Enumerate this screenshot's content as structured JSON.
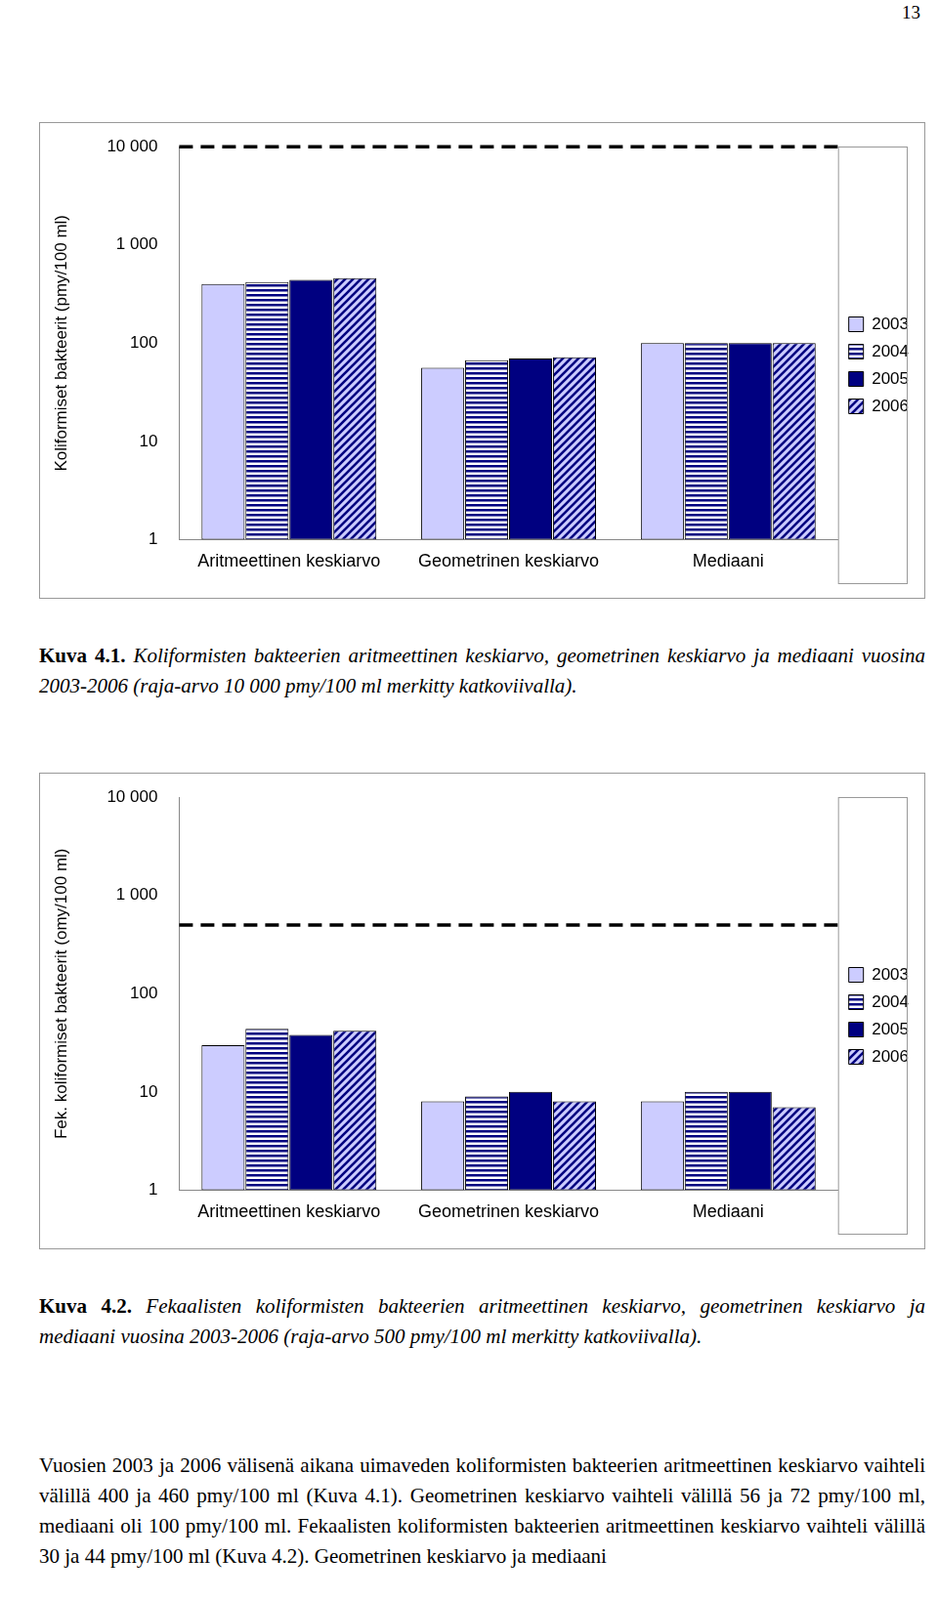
{
  "page_number": "13",
  "chart_data": [
    {
      "type": "bar",
      "y_label": "Koliformiset bakteerit (pmy/100 ml)",
      "categories": [
        "Aritmeettinen keskiarvo",
        "Geometrinen keskiarvo",
        "Mediaani"
      ],
      "series": [
        {
          "name": "2003",
          "color": "#ccccff",
          "values": [
            400,
            56,
            100
          ]
        },
        {
          "name": "2004",
          "color": "#000080",
          "values": [
            420,
            67,
            100
          ]
        },
        {
          "name": "2005",
          "color": "#000080",
          "values": [
            440,
            70,
            100
          ]
        },
        {
          "name": "2006",
          "color": "#000080",
          "values": [
            460,
            72,
            100
          ]
        }
      ],
      "log": "y",
      "ylim": [
        1,
        10000
      ],
      "yticks": [
        1,
        10,
        100,
        {
          "value": 1000,
          "label": "1 000"
        },
        {
          "value": 10000,
          "label": "10 000"
        }
      ],
      "grid": false,
      "legend": "right",
      "threshold": 10000
    },
    {
      "type": "bar",
      "y_label": "Fek. koliformiset bakteerit (omy/100 ml)",
      "categories": [
        "Aritmeettinen keskiarvo",
        "Geometrinen keskiarvo",
        "Mediaani"
      ],
      "series": [
        {
          "name": "2003",
          "color": "#ccccff",
          "values": [
            30,
            8,
            8
          ]
        },
        {
          "name": "2004",
          "color": "#000080",
          "values": [
            44,
            9,
            10
          ]
        },
        {
          "name": "2005",
          "color": "#000080",
          "values": [
            38,
            10,
            10
          ]
        },
        {
          "name": "2006",
          "color": "#000080",
          "values": [
            42,
            8,
            7
          ]
        }
      ],
      "log": "y",
      "ylim": [
        1,
        10000
      ],
      "yticks": [
        1,
        10,
        100,
        {
          "value": 1000,
          "label": "1 000"
        },
        {
          "value": 10000,
          "label": "10 000"
        }
      ],
      "grid": false,
      "legend": "right",
      "threshold": 500
    }
  ],
  "captions": [
    {
      "label": "Kuva 4.1.",
      "text": "Koliformisten bakteerien aritmeettinen keskiarvo, geometrinen keskiarvo ja mediaani vuosina 2003-2006 (raja-arvo 10 000 pmy/100 ml merkitty katkoviivalla)."
    },
    {
      "label": "Kuva 4.2.",
      "text": "Fekaalisten koliformisten bakteerien aritmeettinen keskiarvo, geometrinen keskiarvo ja mediaani vuosina 2003-2006 (raja-arvo 500 pmy/100 ml merkitty katkoviivalla)."
    }
  ],
  "body_text": "Vuosien 2003 ja 2006 välisenä aikana uimaveden koliformisten bakteerien aritmeettinen keskiarvo vaihteli välillä 400 ja 460 pmy/100 ml (Kuva 4.1). Geometrinen keskiarvo vaihteli välillä 56 ja 72 pmy/100 ml, mediaani oli 100 pmy/100 ml. Fekaalisten koliformisten bakteerien aritmeettinen keskiarvo vaihteli välillä 30 ja 44 pmy/100 ml (Kuva 4.2). Geometrinen keskiarvo ja mediaani"
}
